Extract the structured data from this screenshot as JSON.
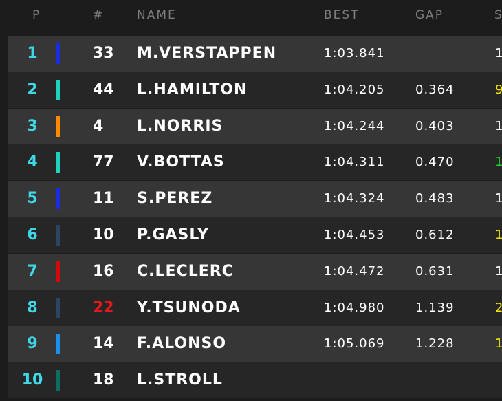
{
  "header": {
    "position": "P",
    "number": "#",
    "name": "NAME",
    "best": "BEST",
    "gap": "GAP",
    "sector": "S"
  },
  "rows": [
    {
      "position": "1",
      "team_color": "#1a2be0",
      "number": "33",
      "name": "M.VERSTAPPEN",
      "best": "1:03.841",
      "sector": "1",
      "sector_color": "#ffffff"
    },
    {
      "position": "2",
      "team_color": "#1fd2c0",
      "number": "44",
      "name": "L.HAMILTON",
      "best": "1:04.205",
      "gap": "0.364",
      "sector": "9",
      "sector_color": "#f2e200"
    },
    {
      "position": "3",
      "team_color": "#ff8a00",
      "number": "4",
      "name": "L.NORRIS",
      "best": "1:04.244",
      "gap": "0.403",
      "sector": "1",
      "sector_color": "#ffffff"
    },
    {
      "position": "4",
      "team_color": "#1fd2c0",
      "number": "77",
      "name": "V.BOTTAS",
      "best": "1:04.311",
      "gap": "0.470",
      "sector": "1",
      "sector_color": "#27d42a"
    },
    {
      "position": "5",
      "team_color": "#1a2be0",
      "number": "11",
      "name": "S.PEREZ",
      "best": "1:04.324",
      "gap": "0.483",
      "sector": "1",
      "sector_color": "#ffffff"
    },
    {
      "position": "6",
      "team_color": "#2c4563",
      "number": "10",
      "name": "P.GASLY",
      "best": "1:04.453",
      "gap": "0.612",
      "sector": "1",
      "sector_color": "#f2e200"
    },
    {
      "position": "7",
      "team_color": "#d40a0a",
      "number": "16",
      "name": "C.LECLERC",
      "best": "1:04.472",
      "gap": "0.631",
      "sector": "1",
      "sector_color": "#ffffff"
    },
    {
      "position": "8",
      "team_color": "#2c4563",
      "number": "22",
      "number_color": "#e01a1a",
      "name": "Y.TSUNODA",
      "best": "1:04.980",
      "gap": "1.139",
      "sector": "2",
      "sector_color": "#f2e200"
    },
    {
      "position": "9",
      "team_color": "#1790f0",
      "number": "14",
      "name": "F.ALONSO",
      "best": "1:05.069",
      "gap": "1.228",
      "sector": "1",
      "sector_color": "#f2e200"
    },
    {
      "position": "10",
      "team_color": "#0b6e5f",
      "number": "18",
      "name": "L.STROLL"
    }
  ]
}
